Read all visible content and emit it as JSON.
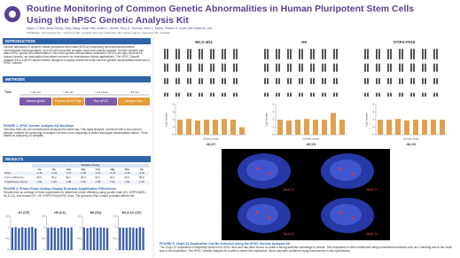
{
  "header": {
    "title": "Routine Monitoring of Common Genetic Abnormalities in Human Pluripotent Stem Cells Using the hPSC Genetic Analysis Kit",
    "authors": "Adam J. Hirst, Alicia Zhang, Vicky Wang, Noah Hills, Arwen L. Hunter, Terry E. Thomas, Allen C. Eaves, Sharon A. Louis, and Vivian M. Lee",
    "affiliation": "STEMCELL Technologies Inc., Vancouver BC, Canada; Terry Fox Laboratory, BC Cancer Agency, Vancouver BC, Canada"
  },
  "introduction": {
    "heading": "INTRODUCTION",
    "text": "Genetic alterations in cultured human pluripotent stem cells (hPSCs) comprising numerical abnormalities, chromosomal rearrangements, and sub-chromosomal changes have been widely reported. Genetic variants can affect hPSC growth and differentiation. Recurrent genetic abnormalities detected in hPSCs are also observed in human cancers, an observation that raises concerns for downstream clinical applications. The hPSC Genetic Analysis Kit is a qPCR-based method designed to rapidly detect the most common genetic abnormalities observed in hPSC cultures."
  },
  "methods": {
    "heading": "METHODS",
    "time_label": "Time:",
    "workflow": [
      "Harvest gDNA",
      "Prepare qPCR Plate",
      "Run qPCR",
      "Analyze Data"
    ],
    "times": [
      "< 30 min",
      "< 45 min",
      "~ 1.5 hours",
      "< 15 min"
    ],
    "caption": "FIGURE 1. hPSC Genetic Analysis Kit Workflow",
    "text": "Genomic DNA can be harvested and analyzed the same day. This rapid analysis, combined with a low cost per sample, enables the screening of multiple cell lines more frequently to detect karyotypic abnormalities earlier. *Time based on analyzing 10 samples."
  },
  "results": {
    "heading": "RESULTS",
    "table": {
      "group": "Genetic Assay",
      "columns": [
        "1q",
        "8q",
        "10p",
        "12p",
        "17q",
        "18q",
        "20q",
        "Xp"
      ],
      "rows": [
        {
          "label": "Slope",
          "cells": [
            -3.36,
            -3.34,
            -3.37,
            -3.35,
            -3.37,
            -3.34,
            -3.36,
            -3.35
          ]
        },
        {
          "label": "Primer Efficiency",
          "cells": [
            98.5,
            99.2,
            98.1,
            98.9,
            98.3,
            99.1,
            98.6,
            98.8
          ]
        },
        {
          "label": "Amplification Factor",
          "cells": [
            1.99,
            1.99,
            1.98,
            1.99,
            1.98,
            1.99,
            1.99,
            1.99
          ]
        }
      ]
    },
    "caption": "FIGURE 2. Primer-Probe Assays Display Desirable Amplification Efficiencies",
    "text": "Results from an average of three experiments to determine primer efficiency using pooled male (H1, STiPS-M001, WLS-1C), and female (H7, H9, STiPS-F016) hPSC lines. The genomic DNA Control provided with the kit."
  },
  "efficiency_charts": {
    "ylim": [
      0,
      1.5
    ],
    "yticks": [
      0,
      0.5,
      1,
      1.5
    ],
    "color": "#3a5ea8",
    "charts": [
      {
        "title": "H1 (CF)",
        "values": [
          1.0,
          1.02,
          0.98,
          1.01,
          0.99,
          1.0,
          1.03,
          0.97
        ]
      },
      {
        "title": "H9 (C2)",
        "values": [
          0.99,
          1.01,
          1.0,
          0.98,
          1.02,
          1.0,
          0.99,
          1.01
        ]
      },
      {
        "title": "H9 (D2)",
        "values": [
          1.01,
          0.98,
          1.0,
          1.02,
          0.99,
          1.01,
          1.0,
          0.98
        ]
      },
      {
        "title": "WLS-1C (CF)",
        "values": [
          1.0,
          1.0,
          0.99,
          1.01,
          1.0,
          0.98,
          1.02,
          1.0
        ]
      }
    ]
  },
  "karyotype": {
    "lines": [
      "WLS-4D1",
      "H9",
      "STiPS-F016"
    ],
    "results": [
      "46,XY",
      "46,XX",
      "46,XX"
    ]
  },
  "copy_number_charts": {
    "y_label": "Copy Number",
    "x_label": "Genetic Assay",
    "ylim": [
      0,
      4
    ],
    "yticks": [
      0,
      1,
      2,
      3,
      4
    ],
    "color": "#e0a050",
    "charts": [
      {
        "values": [
          2.0,
          2.1,
          1.9,
          2.0,
          2.0,
          2.1,
          2.0,
          1.0
        ]
      },
      {
        "values": [
          2.0,
          1.9,
          2.0,
          2.1,
          2.0,
          2.0,
          2.9,
          2.0
        ]
      },
      {
        "values": [
          2.0,
          2.0,
          2.1,
          1.9,
          2.0,
          2.0,
          2.0,
          2.0
        ]
      }
    ]
  },
  "figure5": {
    "labels": [
      "20q11.21",
      "20q11.21",
      "20q11.21",
      "20q11.21"
    ],
    "caption": "FIGURE 5. 20q11.21 Duplication Can Be Detected Using the hPSC Genetic Analysis Kit",
    "text": "The 20q11.21 duplication is frequently observed in hPSC lines and has been shown to confer a strong selective advantage in culture. This duplication is often undetected using conventional methods such as G-banding due to the small size of the duplication. The hPSC Genetic Analysis Kit is able to detect this duplication, which was later confirmed using fluorescence in situ hybridization."
  }
}
